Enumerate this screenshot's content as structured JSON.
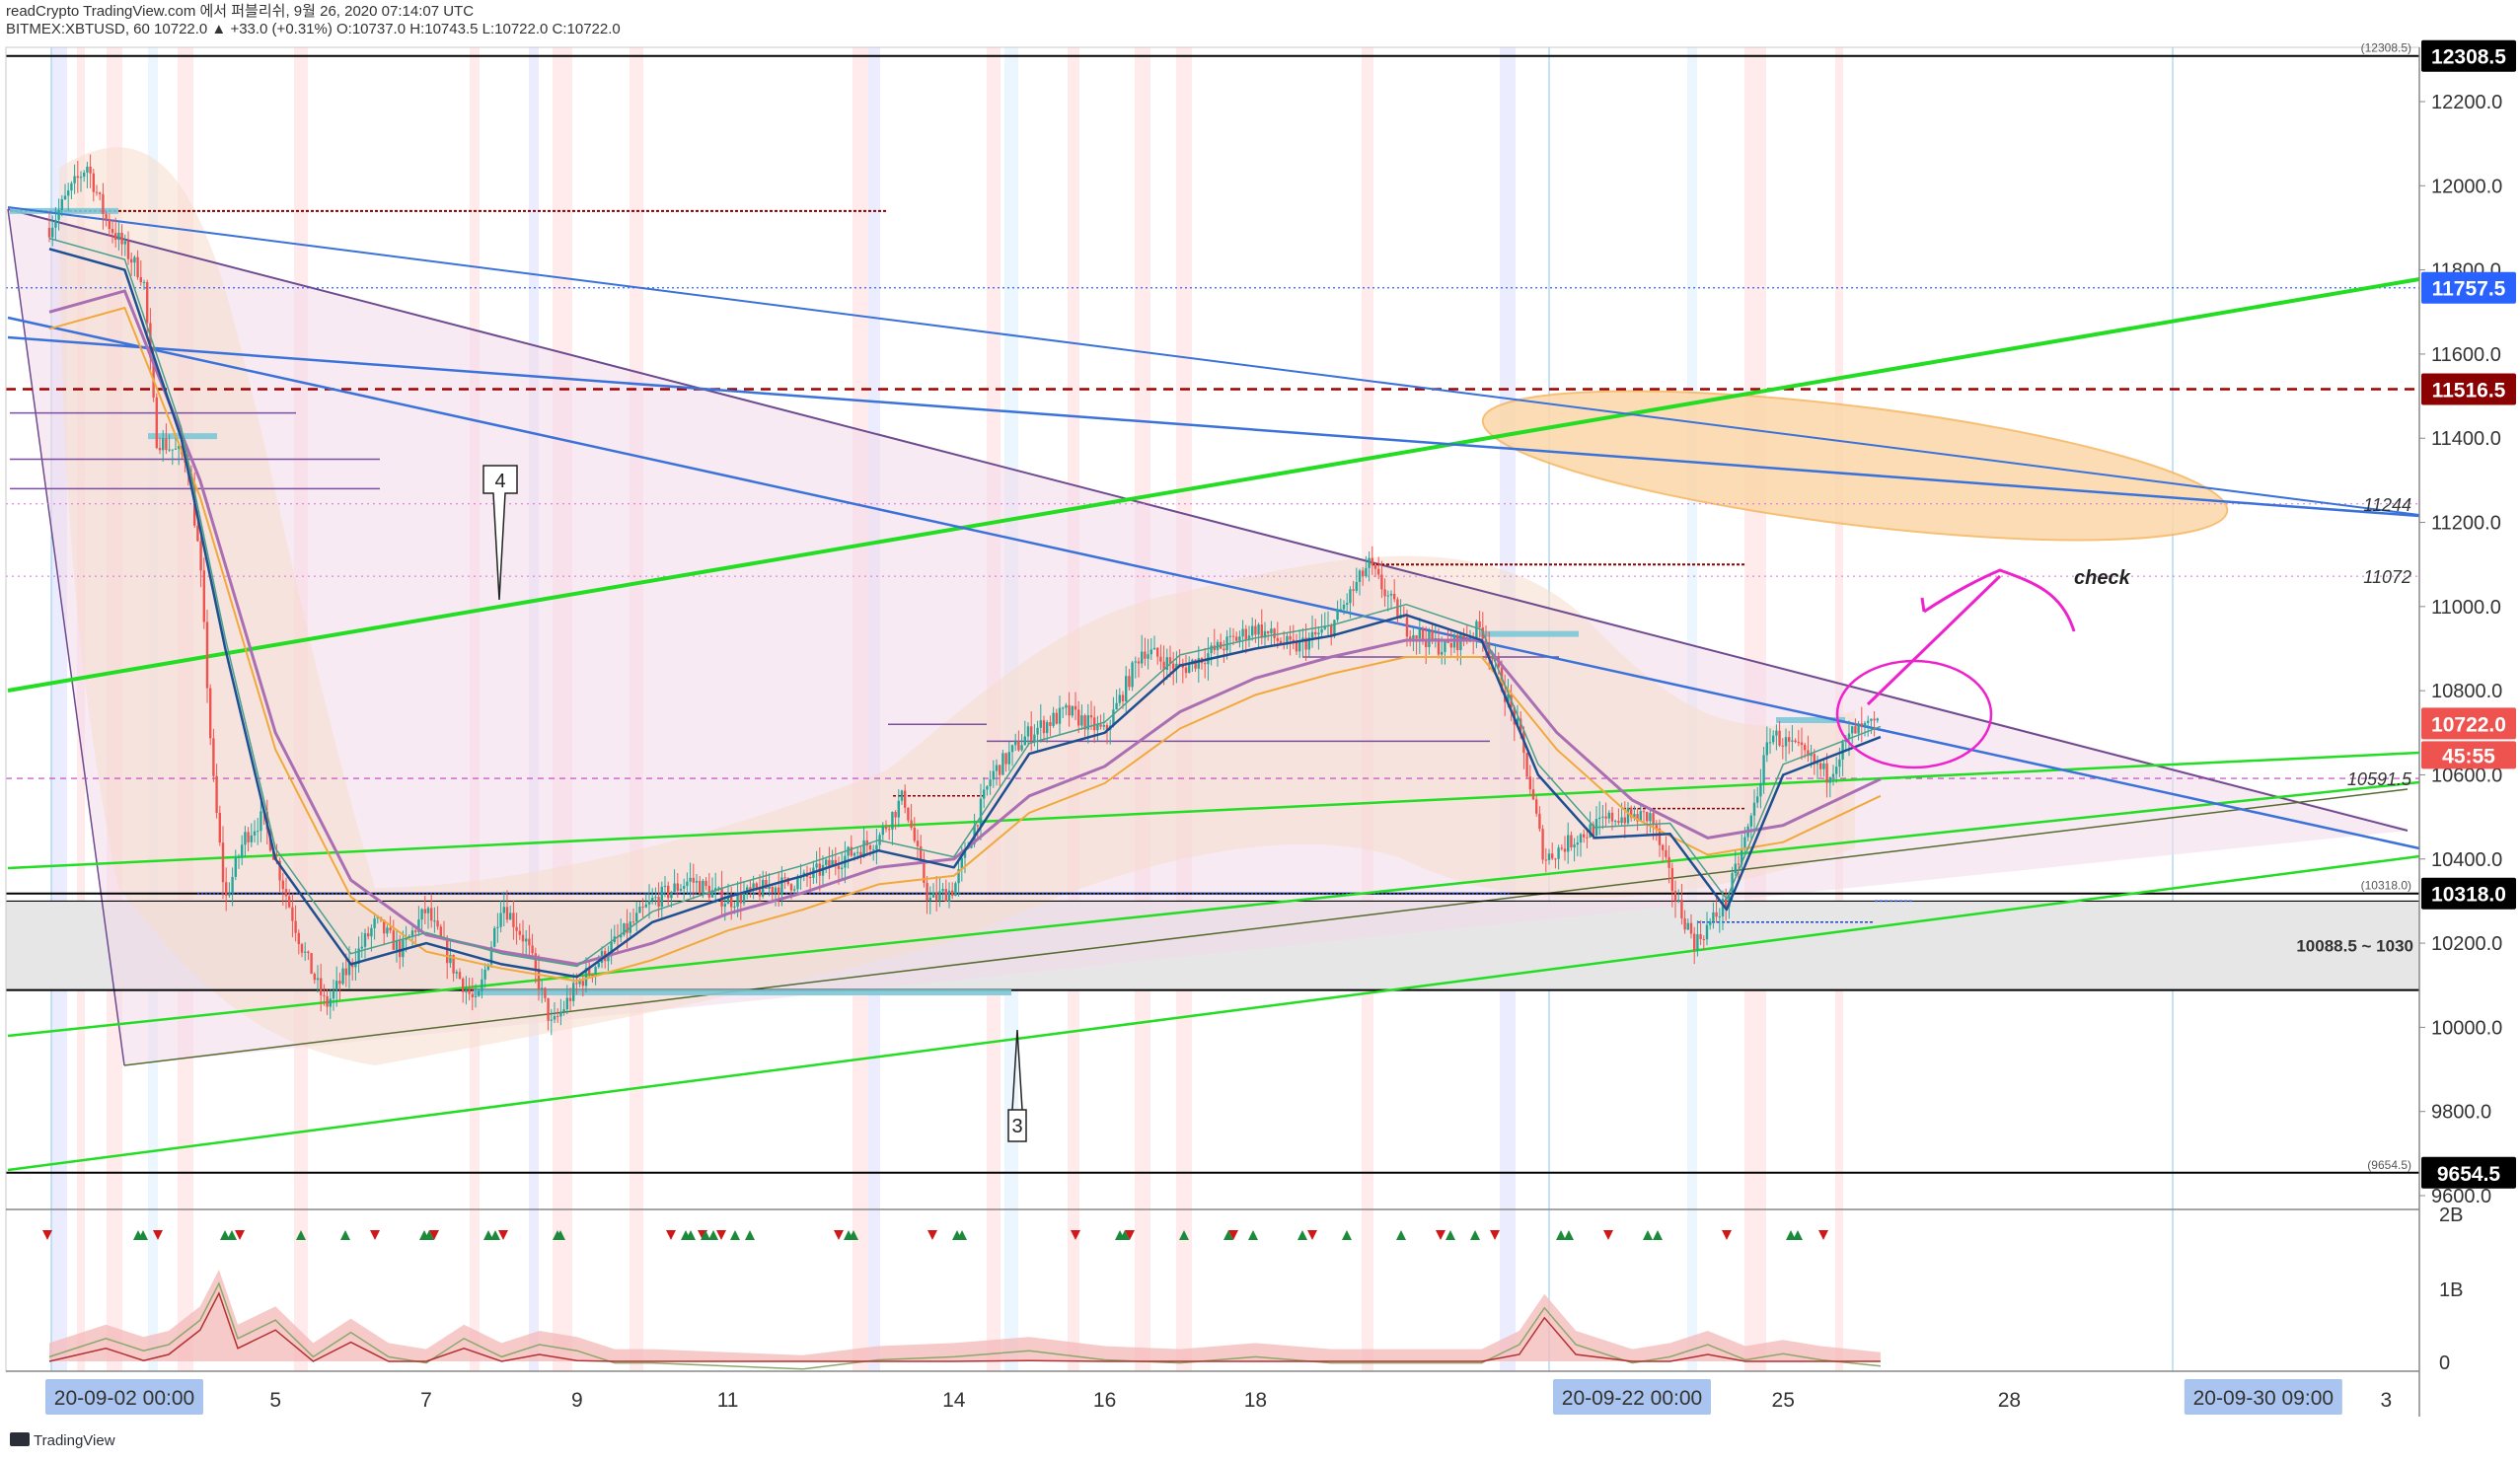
{
  "header": {
    "line1": "readCrypto TradingView.com 에서 퍼블리쉬, 9월 26, 2020 07:14:07 UTC",
    "line2": "BITMEX:XBTUSD, 60  10722.0  ▲ +33.0 (+0.31%)  O:10737.0  H:10743.5  L:10722.0  C:10722.0"
  },
  "footer": {
    "brand": "TradingView"
  },
  "chart_data": {
    "type": "line",
    "title": "BITMEX:XBTUSD, 60",
    "symbol": "BITMEX:XBTUSD",
    "timeframe": "60",
    "last_price": 10722.0,
    "change": "+33.0 (+0.31%)",
    "ohlc": {
      "open": 10737.0,
      "high": 10743.5,
      "low": 10722.0,
      "close": 10722.0
    },
    "ylim": [
      9600,
      12350
    ],
    "y_ticks": [
      9600,
      9800,
      10000,
      10200,
      10400,
      10600,
      10800,
      11000,
      11200,
      11400,
      11600,
      11800,
      12000,
      12200
    ],
    "y_tick_labels": [
      "9600.0",
      "9800.0",
      "10000.0",
      "10200.0",
      "10400.0",
      "10600.0",
      "10800.0",
      "11000.0",
      "11200.0",
      "11400.0",
      "11600.0",
      "11800.0",
      "12000.0",
      "12200.0"
    ],
    "x_range": [
      "2020-09-02 00:00",
      "2020-10-03 06:00"
    ],
    "x_ticks": [
      {
        "t": "2020-09-05",
        "label": "5"
      },
      {
        "t": "2020-09-07",
        "label": "7"
      },
      {
        "t": "2020-09-09",
        "label": "9"
      },
      {
        "t": "2020-09-11",
        "label": "11"
      },
      {
        "t": "2020-09-14",
        "label": "14"
      },
      {
        "t": "2020-09-16",
        "label": "16"
      },
      {
        "t": "2020-09-18",
        "label": "18"
      },
      {
        "t": "2020-09-25",
        "label": "25"
      },
      {
        "t": "2020-09-28",
        "label": "28"
      },
      {
        "t": "2020-10-03",
        "label": "3"
      }
    ],
    "x_highlights": [
      {
        "t": "2020-09-02 00:00",
        "label": "20-09-02   00:00"
      },
      {
        "t": "2020-09-22 00:00",
        "label": "20-09-22   00:00"
      },
      {
        "t": "2020-09-30 09:00",
        "label": "20-09-30   09:00"
      }
    ],
    "price_badges": [
      {
        "value": 12308.5,
        "label": "12308.5",
        "color": "#000000"
      },
      {
        "value": 11757.5,
        "label": "11757.5",
        "color": "#2962ff"
      },
      {
        "value": 11516.5,
        "label": "11516.5",
        "color": "#8b0000"
      },
      {
        "value": 10722.0,
        "label": "10722.0",
        "color": "#ef5350"
      },
      {
        "value": 10318.0,
        "label": "10318.0",
        "color": "#000000"
      },
      {
        "value": 9654.5,
        "label": "9654.5",
        "color": "#000000"
      }
    ],
    "countdown": "45:55",
    "level_labels": [
      {
        "value": 11244,
        "label": "11244"
      },
      {
        "value": 11072,
        "label": "11072"
      },
      {
        "value": 10591.5,
        "label": "10591.5"
      }
    ],
    "small_labels": [
      {
        "value": 12308.5,
        "label": "(12308.5)"
      },
      {
        "value": 10318.0,
        "label": "(10318.0)"
      },
      {
        "value": 9654.5,
        "label": "(9654.5)"
      }
    ],
    "zone": {
      "from": 10088.5,
      "to": 10300,
      "label": "10088.5 ~ 1030"
    },
    "annotations": [
      {
        "label": "4"
      },
      {
        "label": "3"
      },
      {
        "label": "check"
      }
    ],
    "volume_ticks": [
      "2B",
      "1B",
      "0"
    ],
    "price_path": [
      [
        "2020-09-02 00:00",
        11900
      ],
      [
        "2020-09-02 06:00",
        11980
      ],
      [
        "2020-09-02 12:00",
        12050
      ],
      [
        "2020-09-02 18:00",
        11920
      ],
      [
        "2020-09-03 00:00",
        11850
      ],
      [
        "2020-09-03 06:00",
        11780
      ],
      [
        "2020-09-03 10:00",
        11400
      ],
      [
        "2020-09-03 14:00",
        11380
      ],
      [
        "2020-09-03 20:00",
        11350
      ],
      [
        "2020-09-04 00:00",
        11100
      ],
      [
        "2020-09-04 04:00",
        10600
      ],
      [
        "2020-09-04 08:00",
        10300
      ],
      [
        "2020-09-04 14:00",
        10450
      ],
      [
        "2020-09-04 20:00",
        10500
      ],
      [
        "2020-09-05 02:00",
        10350
      ],
      [
        "2020-09-05 08:00",
        10200
      ],
      [
        "2020-09-05 16:00",
        10050
      ],
      [
        "2020-09-06 00:00",
        10150
      ],
      [
        "2020-09-06 08:00",
        10250
      ],
      [
        "2020-09-06 16:00",
        10180
      ],
      [
        "2020-09-07 00:00",
        10280
      ],
      [
        "2020-09-07 08:00",
        10150
      ],
      [
        "2020-09-07 16:00",
        10050
      ],
      [
        "2020-09-08 00:00",
        10300
      ],
      [
        "2020-09-08 08:00",
        10200
      ],
      [
        "2020-09-08 16:00",
        10000
      ],
      [
        "2020-09-09 00:00",
        10100
      ],
      [
        "2020-09-09 12:00",
        10200
      ],
      [
        "2020-09-10 00:00",
        10300
      ],
      [
        "2020-09-10 12:00",
        10350
      ],
      [
        "2020-09-11 00:00",
        10300
      ],
      [
        "2020-09-11 12:00",
        10330
      ],
      [
        "2020-09-12 00:00",
        10350
      ],
      [
        "2020-09-12 12:00",
        10400
      ],
      [
        "2020-09-13 00:00",
        10450
      ],
      [
        "2020-09-13 08:00",
        10550
      ],
      [
        "2020-09-13 16:00",
        10300
      ],
      [
        "2020-09-14 00:00",
        10330
      ],
      [
        "2020-09-14 12:00",
        10600
      ],
      [
        "2020-09-15 00:00",
        10700
      ],
      [
        "2020-09-15 12:00",
        10750
      ],
      [
        "2020-09-16 00:00",
        10700
      ],
      [
        "2020-09-16 12:00",
        10900
      ],
      [
        "2020-09-17 00:00",
        10850
      ],
      [
        "2020-09-17 12:00",
        10900
      ],
      [
        "2020-09-18 00:00",
        10950
      ],
      [
        "2020-09-18 12:00",
        10900
      ],
      [
        "2020-09-19 00:00",
        10950
      ],
      [
        "2020-09-19 12:00",
        11100
      ],
      [
        "2020-09-20 00:00",
        10950
      ],
      [
        "2020-09-20 12:00",
        10900
      ],
      [
        "2020-09-21 00:00",
        10950
      ],
      [
        "2020-09-21 12:00",
        10700
      ],
      [
        "2020-09-21 20:00",
        10400
      ],
      [
        "2020-09-22 06:00",
        10450
      ],
      [
        "2020-09-22 18:00",
        10500
      ],
      [
        "2020-09-23 06:00",
        10500
      ],
      [
        "2020-09-23 14:00",
        10300
      ],
      [
        "2020-09-23 20:00",
        10200
      ],
      [
        "2020-09-24 06:00",
        10300
      ],
      [
        "2020-09-24 14:00",
        10500
      ],
      [
        "2020-09-24 20:00",
        10700
      ],
      [
        "2020-09-25 06:00",
        10650
      ],
      [
        "2020-09-25 14:00",
        10600
      ],
      [
        "2020-09-25 22:00",
        10700
      ],
      [
        "2020-09-26 07:00",
        10722
      ]
    ],
    "ma_fast": [
      [
        "2020-09-02 00:00",
        11850
      ],
      [
        "2020-09-03 00:00",
        11800
      ],
      [
        "2020-09-03 18:00",
        11400
      ],
      [
        "2020-09-04 08:00",
        10900
      ],
      [
        "2020-09-05 00:00",
        10400
      ],
      [
        "2020-09-06 00:00",
        10150
      ],
      [
        "2020-09-07 00:00",
        10200
      ],
      [
        "2020-09-08 00:00",
        10150
      ],
      [
        "2020-09-09 00:00",
        10120
      ],
      [
        "2020-09-10 00:00",
        10250
      ],
      [
        "2020-09-11 00:00",
        10310
      ],
      [
        "2020-09-12 00:00",
        10360
      ],
      [
        "2020-09-13 00:00",
        10420
      ],
      [
        "2020-09-14 00:00",
        10380
      ],
      [
        "2020-09-15 00:00",
        10650
      ],
      [
        "2020-09-16 00:00",
        10700
      ],
      [
        "2020-09-17 00:00",
        10860
      ],
      [
        "2020-09-18 00:00",
        10900
      ],
      [
        "2020-09-19 00:00",
        10930
      ],
      [
        "2020-09-20 00:00",
        10980
      ],
      [
        "2020-09-21 00:00",
        10920
      ],
      [
        "2020-09-21 18:00",
        10600
      ],
      [
        "2020-09-22 12:00",
        10450
      ],
      [
        "2020-09-23 12:00",
        10460
      ],
      [
        "2020-09-24 06:00",
        10280
      ],
      [
        "2020-09-25 00:00",
        10600
      ],
      [
        "2020-09-26 07:00",
        10690
      ]
    ],
    "ma_slow": [
      [
        "2020-09-02 00:00",
        11700
      ],
      [
        "2020-09-03 00:00",
        11750
      ],
      [
        "2020-09-04 00:00",
        11300
      ],
      [
        "2020-09-05 00:00",
        10700
      ],
      [
        "2020-09-06 00:00",
        10350
      ],
      [
        "2020-09-07 00:00",
        10220
      ],
      [
        "2020-09-08 00:00",
        10180
      ],
      [
        "2020-09-09 00:00",
        10150
      ],
      [
        "2020-09-10 00:00",
        10200
      ],
      [
        "2020-09-11 00:00",
        10270
      ],
      [
        "2020-09-12 00:00",
        10320
      ],
      [
        "2020-09-13 00:00",
        10380
      ],
      [
        "2020-09-14 00:00",
        10400
      ],
      [
        "2020-09-15 00:00",
        10550
      ],
      [
        "2020-09-16 00:00",
        10620
      ],
      [
        "2020-09-17 00:00",
        10750
      ],
      [
        "2020-09-18 00:00",
        10830
      ],
      [
        "2020-09-19 00:00",
        10880
      ],
      [
        "2020-09-20 00:00",
        10920
      ],
      [
        "2020-09-21 00:00",
        10920
      ],
      [
        "2020-09-22 00:00",
        10700
      ],
      [
        "2020-09-23 00:00",
        10540
      ],
      [
        "2020-09-24 00:00",
        10450
      ],
      [
        "2020-09-25 00:00",
        10480
      ],
      [
        "2020-09-26 07:00",
        10590
      ]
    ],
    "volume_series": [
      [
        "2020-09-02 00:00",
        0.3
      ],
      [
        "2020-09-02 18:00",
        0.6
      ],
      [
        "2020-09-03 06:00",
        0.4
      ],
      [
        "2020-09-03 14:00",
        0.5
      ],
      [
        "2020-09-04 00:00",
        0.9
      ],
      [
        "2020-09-04 06:00",
        1.5
      ],
      [
        "2020-09-04 12:00",
        0.6
      ],
      [
        "2020-09-05 00:00",
        0.9
      ],
      [
        "2020-09-05 12:00",
        0.3
      ],
      [
        "2020-09-06 00:00",
        0.7
      ],
      [
        "2020-09-06 12:00",
        0.3
      ],
      [
        "2020-09-07 00:00",
        0.2
      ],
      [
        "2020-09-07 12:00",
        0.6
      ],
      [
        "2020-09-08 00:00",
        0.3
      ],
      [
        "2020-09-08 12:00",
        0.5
      ],
      [
        "2020-09-09 00:00",
        0.4
      ],
      [
        "2020-09-09 12:00",
        0.2
      ],
      [
        "2020-09-10 00:00",
        0.2
      ],
      [
        "2020-09-11 00:00",
        0.15
      ],
      [
        "2020-09-12 00:00",
        0.1
      ],
      [
        "2020-09-13 00:00",
        0.25
      ],
      [
        "2020-09-14 00:00",
        0.3
      ],
      [
        "2020-09-15 00:00",
        0.4
      ],
      [
        "2020-09-16 00:00",
        0.25
      ],
      [
        "2020-09-17 00:00",
        0.2
      ],
      [
        "2020-09-18 00:00",
        0.3
      ],
      [
        "2020-09-19 00:00",
        0.2
      ],
      [
        "2020-09-20 00:00",
        0.2
      ],
      [
        "2020-09-21 00:00",
        0.2
      ],
      [
        "2020-09-21 12:00",
        0.5
      ],
      [
        "2020-09-21 20:00",
        1.1
      ],
      [
        "2020-09-22 06:00",
        0.5
      ],
      [
        "2020-09-23 00:00",
        0.2
      ],
      [
        "2020-09-23 12:00",
        0.3
      ],
      [
        "2020-09-24 00:00",
        0.5
      ],
      [
        "2020-09-24 12:00",
        0.25
      ],
      [
        "2020-09-25 00:00",
        0.35
      ],
      [
        "2020-09-25 12:00",
        0.25
      ],
      [
        "2020-09-26 07:00",
        0.15
      ]
    ],
    "volume_range": [
      0,
      2
    ]
  },
  "colors": {
    "candle_up": "#26a69a",
    "candle_down": "#ef5350",
    "trend_green": "#22dd22",
    "trend_blue": "#3a72d9",
    "triangle": "#6e4a8e",
    "ma_fast": "#1d4f91",
    "ma_slow": "#a96fb2",
    "ma_orange": "#f0a93a",
    "ellipse": "#f6b45c",
    "magenta": "#ee22cc"
  }
}
